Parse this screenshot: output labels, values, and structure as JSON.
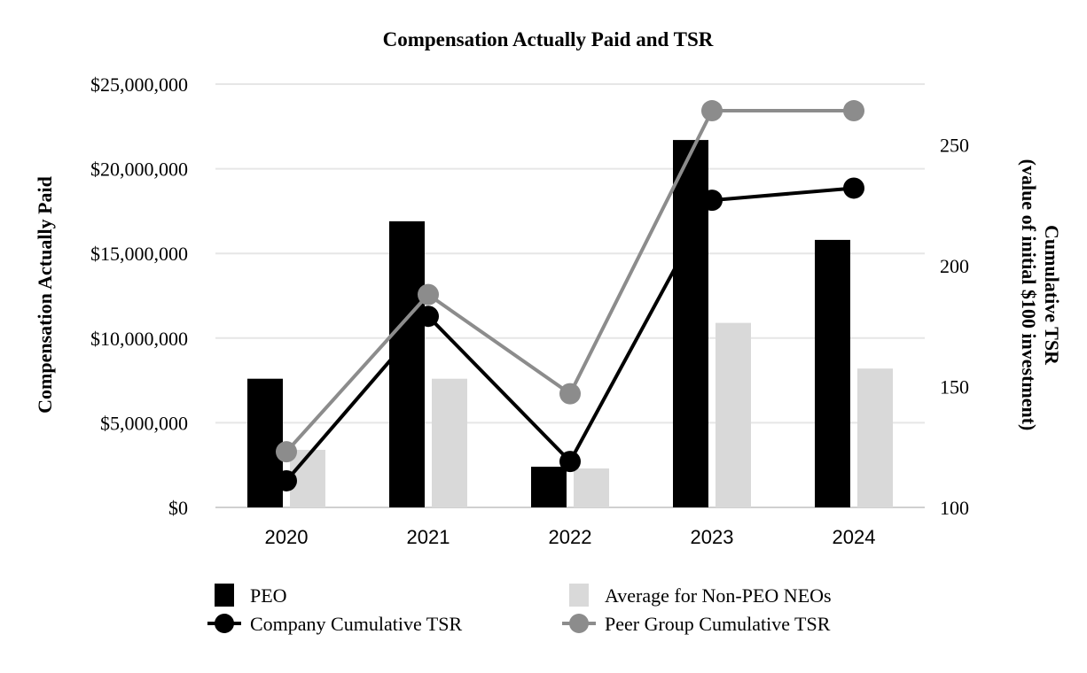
{
  "chart_data": {
    "type": "bar",
    "title": "Compensation Actually Paid and TSR",
    "categories": [
      "2020",
      "2021",
      "2022",
      "2023",
      "2024"
    ],
    "ylabel": "Compensation Actually Paid",
    "ylabel_right": [
      "Cumulative TSR",
      "(value of initial $100 investment)"
    ],
    "ylim": [
      0,
      25000000
    ],
    "y_ticks": [
      0,
      5000000,
      10000000,
      15000000,
      20000000,
      25000000
    ],
    "y_tick_labels": [
      "$0",
      "$5,000,000",
      "$10,000,000",
      "$15,000,000",
      "$20,000,000",
      "$25,000,000"
    ],
    "ylim_right": [
      100,
      275
    ],
    "y_ticks_right": [
      100,
      150,
      200,
      250
    ],
    "y_tick_labels_right": [
      "100",
      "150",
      "200",
      "250"
    ],
    "grid": true,
    "legend_position": "bottom",
    "series": [
      {
        "name": "PEO",
        "kind": "bar",
        "axis": "left",
        "color": "#000000",
        "values": [
          7600000,
          16900000,
          2400000,
          21700000,
          15800000
        ]
      },
      {
        "name": "Average for Non-PEO NEOs",
        "kind": "bar",
        "axis": "left",
        "color": "#d9d9d9",
        "values": [
          3400000,
          7600000,
          2300000,
          10900000,
          8200000
        ]
      },
      {
        "name": "Company Cumulative TSR",
        "kind": "line",
        "axis": "right",
        "color": "#000000",
        "values": [
          111,
          179,
          119,
          227,
          232
        ]
      },
      {
        "name": "Peer Group Cumulative TSR",
        "kind": "line",
        "axis": "right",
        "color": "#8c8c8c",
        "values": [
          123,
          188,
          147,
          264,
          264
        ]
      }
    ]
  }
}
